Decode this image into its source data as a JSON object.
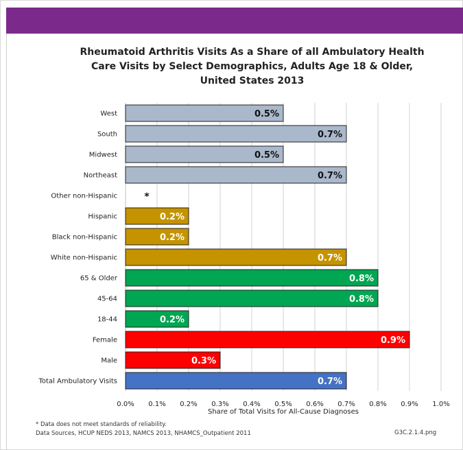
{
  "header": {
    "color": "#7b2a8c"
  },
  "title_lines": [
    "Rheumatoid Arthritis Visits As a Share of all Ambulatory Health",
    "Care Visits by Select Demographics, Adults Age 18 & Older,",
    "United States 2013"
  ],
  "chart_data": {
    "type": "bar",
    "orientation": "horizontal",
    "title": "Rheumatoid Arthritis Visits As a Share of all Ambulatory Health Care Visits by Select Demographics, Adults Age 18 & Older, United States 2013",
    "xlabel": "Share of Total Visits for All-Cause Diagnoses",
    "ylabel": "",
    "xlim": [
      0,
      1.0
    ],
    "x_ticks": [
      "0.0%",
      "0.1%",
      "0.2%",
      "0.3%",
      "0.4%",
      "0.5%",
      "0.6%",
      "0.7%",
      "0.8%",
      "0.9%",
      "1.0%"
    ],
    "grid": "vertical",
    "categories": [
      "West",
      "South",
      "Midwest",
      "Northeast",
      "Other non-Hispanic",
      "Hispanic",
      "Black non-Hispanic",
      "White non-Hispanic",
      "65 & Older",
      "45-64",
      "18-44",
      "Female",
      "Male",
      "Total Ambulatory Visits"
    ],
    "values": [
      0.5,
      0.7,
      0.5,
      0.7,
      null,
      0.2,
      0.2,
      0.7,
      0.8,
      0.8,
      0.2,
      0.9,
      0.3,
      0.7
    ],
    "value_labels": [
      "0.5%",
      "0.7%",
      "0.5%",
      "0.7%",
      "*",
      "0.2%",
      "0.2%",
      "0.7%",
      "0.8%",
      "0.8%",
      "0.2%",
      "0.9%",
      "0.3%",
      "0.7%"
    ],
    "bar_colors": [
      "#aab8cb",
      "#aab8cb",
      "#aab8cb",
      "#aab8cb",
      "#ffffff",
      "#c59300",
      "#c59300",
      "#c59300",
      "#00a651",
      "#00a651",
      "#00a651",
      "#ff0000",
      "#ff0000",
      "#4472c4"
    ],
    "label_colors": [
      "#111111",
      "#111111",
      "#111111",
      "#111111",
      "#111111",
      "#ffffff",
      "#ffffff",
      "#ffffff",
      "#ffffff",
      "#ffffff",
      "#ffffff",
      "#ffffff",
      "#ffffff",
      "#ffffff"
    ]
  },
  "footnote": {
    "line1": "* Data does not meet standards of reliability.",
    "line2": "Data Sources, HCUP NEDS 2013, NAMCS 2013, NHAMCS_Outpatient 2011"
  },
  "file_id": "G3C.2.1.4.png"
}
